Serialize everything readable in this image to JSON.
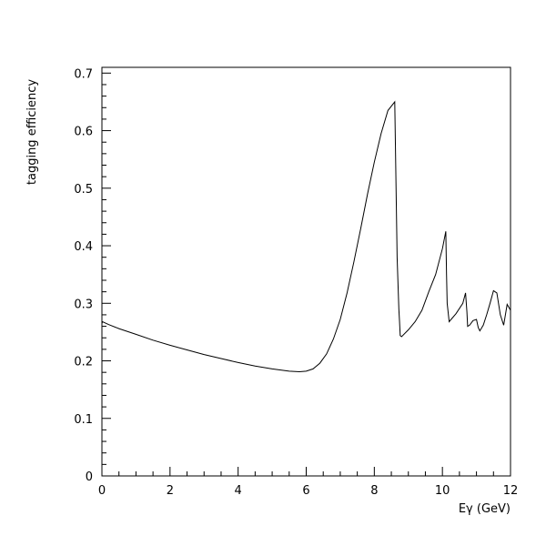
{
  "chart_data": {
    "type": "line",
    "title": "",
    "xlabel": "Eγ (GeV)",
    "ylabel": "tagging efficiency",
    "xlim": [
      0,
      12
    ],
    "ylim": [
      0,
      0.71
    ],
    "x_ticks": [
      0,
      2,
      4,
      6,
      8,
      10,
      12
    ],
    "x_tick_labels": [
      "0",
      "2",
      "4",
      "6",
      "8",
      "10",
      "12"
    ],
    "y_ticks": [
      0,
      0.1,
      0.2,
      0.3,
      0.4,
      0.5,
      0.6,
      0.7
    ],
    "y_tick_labels": [
      "0",
      "0.1",
      "0.2",
      "0.3",
      "0.4",
      "0.5",
      "0.6",
      "0.7"
    ],
    "grid": false,
    "legend": "none",
    "line_color": "#000000",
    "series": [
      {
        "x": [
          0.0,
          0.02,
          0.2,
          0.5,
          1.0,
          1.5,
          2.0,
          2.5,
          3.0,
          3.5,
          4.0,
          4.5,
          5.0,
          5.5,
          5.8,
          6.0,
          6.2,
          6.4,
          6.6,
          6.8,
          7.0,
          7.2,
          7.4,
          7.6,
          7.8,
          8.0,
          8.2,
          8.4,
          8.6,
          8.67,
          8.72,
          8.74,
          8.76,
          8.8,
          9.0,
          9.2,
          9.4,
          9.6,
          9.8,
          10.0,
          10.1,
          10.12,
          10.14,
          10.2,
          10.4,
          10.6,
          10.68,
          10.72,
          10.74,
          10.8,
          10.9,
          11.0,
          11.05,
          11.1,
          11.2,
          11.3,
          11.4,
          11.5,
          11.6,
          11.7,
          11.8,
          11.9,
          12.0
        ],
        "y": [
          0.265,
          0.268,
          0.263,
          0.256,
          0.246,
          0.236,
          0.227,
          0.219,
          0.211,
          0.204,
          0.197,
          0.191,
          0.186,
          0.182,
          0.181,
          0.182,
          0.186,
          0.196,
          0.212,
          0.238,
          0.272,
          0.318,
          0.372,
          0.43,
          0.49,
          0.545,
          0.595,
          0.635,
          0.65,
          0.38,
          0.29,
          0.27,
          0.244,
          0.242,
          0.254,
          0.268,
          0.288,
          0.32,
          0.35,
          0.395,
          0.425,
          0.35,
          0.3,
          0.268,
          0.282,
          0.3,
          0.318,
          0.285,
          0.26,
          0.262,
          0.27,
          0.272,
          0.258,
          0.252,
          0.262,
          0.28,
          0.3,
          0.322,
          0.318,
          0.28,
          0.262,
          0.298,
          0.288
        ]
      }
    ]
  }
}
